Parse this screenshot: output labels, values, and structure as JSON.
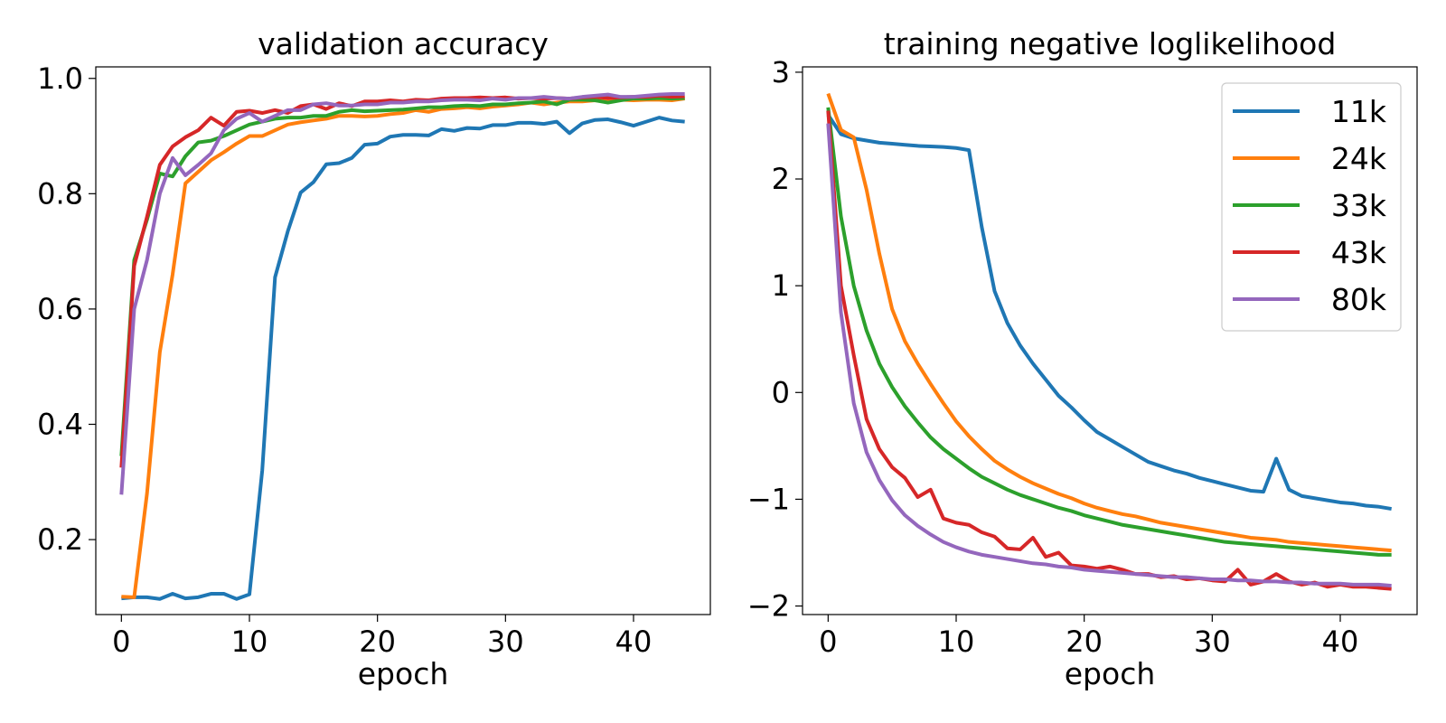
{
  "chart_data": [
    {
      "type": "line",
      "title": "validation accuracy",
      "xlabel": "epoch",
      "ylabel": "",
      "xlim": [
        -2,
        46
      ],
      "ylim": [
        0.07,
        1.02
      ],
      "xticks": [
        0,
        10,
        20,
        30,
        40
      ],
      "xtick_labels": [
        "0",
        "10",
        "20",
        "30",
        "40"
      ],
      "yticks": [
        0.2,
        0.4,
        0.6,
        0.8,
        1.0
      ],
      "ytick_labels": [
        "0.2",
        "0.4",
        "0.6",
        "0.8",
        "1.0"
      ],
      "grid": false,
      "series": [
        {
          "color": "#1f77b4",
          "values": [
            0.098,
            0.1,
            0.1,
            0.097,
            0.106,
            0.098,
            0.1,
            0.106,
            0.106,
            0.097,
            0.105,
            0.32,
            0.655,
            0.735,
            0.802,
            0.82,
            0.851,
            0.853,
            0.862,
            0.885,
            0.887,
            0.899,
            0.902,
            0.902,
            0.901,
            0.912,
            0.909,
            0.914,
            0.913,
            0.919,
            0.919,
            0.923,
            0.923,
            0.921,
            0.925,
            0.905,
            0.922,
            0.928,
            0.929,
            0.924,
            0.918,
            0.925,
            0.932,
            0.927,
            0.925
          ]
        },
        {
          "color": "#ff7f0e",
          "values": [
            0.101,
            0.1,
            0.28,
            0.525,
            0.66,
            0.818,
            0.838,
            0.858,
            0.872,
            0.887,
            0.9,
            0.9,
            0.91,
            0.92,
            0.924,
            0.927,
            0.93,
            0.935,
            0.935,
            0.934,
            0.935,
            0.938,
            0.94,
            0.945,
            0.942,
            0.947,
            0.948,
            0.95,
            0.948,
            0.951,
            0.953,
            0.955,
            0.958,
            0.955,
            0.958,
            0.96,
            0.96,
            0.962,
            0.96,
            0.963,
            0.962,
            0.963,
            0.963,
            0.962,
            0.965
          ]
        },
        {
          "color": "#2ca02c",
          "values": [
            0.345,
            0.685,
            0.755,
            0.835,
            0.83,
            0.865,
            0.889,
            0.892,
            0.9,
            0.91,
            0.92,
            0.925,
            0.93,
            0.932,
            0.932,
            0.935,
            0.935,
            0.942,
            0.945,
            0.943,
            0.944,
            0.945,
            0.946,
            0.948,
            0.95,
            0.95,
            0.952,
            0.953,
            0.952,
            0.955,
            0.955,
            0.957,
            0.958,
            0.96,
            0.955,
            0.963,
            0.963,
            0.962,
            0.958,
            0.962,
            0.965,
            0.965,
            0.966,
            0.965,
            0.966
          ]
        },
        {
          "color": "#d62728",
          "values": [
            0.325,
            0.675,
            0.76,
            0.85,
            0.882,
            0.898,
            0.91,
            0.932,
            0.918,
            0.942,
            0.944,
            0.94,
            0.945,
            0.94,
            0.952,
            0.955,
            0.947,
            0.957,
            0.952,
            0.96,
            0.96,
            0.962,
            0.96,
            0.963,
            0.962,
            0.965,
            0.966,
            0.966,
            0.967,
            0.966,
            0.967,
            0.965,
            0.966,
            0.965,
            0.966,
            0.965,
            0.967,
            0.968,
            0.966,
            0.967,
            0.968,
            0.968,
            0.97,
            0.968,
            0.969
          ]
        },
        {
          "color": "#9467bd",
          "values": [
            0.278,
            0.6,
            0.685,
            0.8,
            0.862,
            0.832,
            0.85,
            0.87,
            0.91,
            0.93,
            0.94,
            0.925,
            0.935,
            0.945,
            0.945,
            0.955,
            0.957,
            0.953,
            0.953,
            0.955,
            0.955,
            0.958,
            0.958,
            0.96,
            0.96,
            0.962,
            0.963,
            0.963,
            0.962,
            0.965,
            0.963,
            0.966,
            0.966,
            0.968,
            0.966,
            0.965,
            0.968,
            0.97,
            0.972,
            0.968,
            0.968,
            0.97,
            0.972,
            0.973,
            0.973
          ]
        }
      ]
    },
    {
      "type": "line",
      "title": "training negative loglikelihood",
      "xlabel": "epoch",
      "ylabel": "",
      "xlim": [
        -2,
        46
      ],
      "ylim": [
        -2.08,
        3.05
      ],
      "xticks": [
        0,
        10,
        20,
        30,
        40
      ],
      "xtick_labels": [
        "0",
        "10",
        "20",
        "30",
        "40"
      ],
      "yticks": [
        -2,
        -1,
        0,
        1,
        2,
        3
      ],
      "ytick_labels": [
        "−2",
        "−1",
        "0",
        "1",
        "2",
        "3"
      ],
      "grid": false,
      "legend": {
        "placement": "upper right",
        "entries": [
          {
            "label": "11k",
            "color": "#1f77b4"
          },
          {
            "label": "24k",
            "color": "#ff7f0e"
          },
          {
            "label": "33k",
            "color": "#2ca02c"
          },
          {
            "label": "43k",
            "color": "#d62728"
          },
          {
            "label": "80k",
            "color": "#9467bd"
          }
        ]
      },
      "series": [
        {
          "name": "11k",
          "color": "#1f77b4",
          "values": [
            2.6,
            2.42,
            2.38,
            2.36,
            2.34,
            2.33,
            2.32,
            2.31,
            2.305,
            2.3,
            2.29,
            2.27,
            1.55,
            0.95,
            0.65,
            0.44,
            0.27,
            0.12,
            -0.03,
            -0.14,
            -0.26,
            -0.37,
            -0.44,
            -0.51,
            -0.58,
            -0.65,
            -0.69,
            -0.73,
            -0.76,
            -0.8,
            -0.83,
            -0.86,
            -0.89,
            -0.92,
            -0.93,
            -0.62,
            -0.91,
            -0.97,
            -0.99,
            -1.01,
            -1.03,
            -1.04,
            -1.06,
            -1.07,
            -1.09
          ]
        },
        {
          "name": "24k",
          "color": "#ff7f0e",
          "values": [
            2.8,
            2.46,
            2.39,
            1.9,
            1.3,
            0.78,
            0.48,
            0.27,
            0.08,
            -0.1,
            -0.27,
            -0.41,
            -0.53,
            -0.64,
            -0.72,
            -0.79,
            -0.85,
            -0.9,
            -0.95,
            -0.99,
            -1.04,
            -1.08,
            -1.11,
            -1.14,
            -1.16,
            -1.19,
            -1.22,
            -1.24,
            -1.26,
            -1.28,
            -1.3,
            -1.32,
            -1.34,
            -1.36,
            -1.37,
            -1.38,
            -1.4,
            -1.41,
            -1.42,
            -1.43,
            -1.44,
            -1.45,
            -1.46,
            -1.47,
            -1.48
          ]
        },
        {
          "name": "33k",
          "color": "#2ca02c",
          "values": [
            2.67,
            1.65,
            1.0,
            0.58,
            0.27,
            0.05,
            -0.13,
            -0.28,
            -0.42,
            -0.53,
            -0.62,
            -0.71,
            -0.79,
            -0.85,
            -0.91,
            -0.96,
            -1.0,
            -1.04,
            -1.08,
            -1.11,
            -1.15,
            -1.18,
            -1.21,
            -1.24,
            -1.26,
            -1.28,
            -1.3,
            -1.32,
            -1.34,
            -1.36,
            -1.38,
            -1.4,
            -1.41,
            -1.42,
            -1.43,
            -1.44,
            -1.45,
            -1.46,
            -1.47,
            -1.48,
            -1.49,
            -1.5,
            -1.51,
            -1.52,
            -1.52
          ]
        },
        {
          "name": "43k",
          "color": "#d62728",
          "values": [
            2.64,
            1.0,
            0.35,
            -0.25,
            -0.53,
            -0.7,
            -0.8,
            -0.98,
            -0.91,
            -1.18,
            -1.22,
            -1.24,
            -1.31,
            -1.35,
            -1.46,
            -1.47,
            -1.36,
            -1.54,
            -1.5,
            -1.62,
            -1.63,
            -1.65,
            -1.63,
            -1.66,
            -1.7,
            -1.7,
            -1.73,
            -1.72,
            -1.75,
            -1.74,
            -1.76,
            -1.77,
            -1.66,
            -1.8,
            -1.77,
            -1.7,
            -1.77,
            -1.8,
            -1.78,
            -1.82,
            -1.8,
            -1.82,
            -1.82,
            -1.83,
            -1.84
          ]
        },
        {
          "name": "80k",
          "color": "#9467bd",
          "values": [
            2.52,
            0.75,
            -0.1,
            -0.56,
            -0.82,
            -1.01,
            -1.15,
            -1.25,
            -1.33,
            -1.4,
            -1.45,
            -1.49,
            -1.52,
            -1.54,
            -1.56,
            -1.58,
            -1.6,
            -1.61,
            -1.63,
            -1.64,
            -1.66,
            -1.67,
            -1.68,
            -1.69,
            -1.7,
            -1.71,
            -1.72,
            -1.73,
            -1.73,
            -1.74,
            -1.75,
            -1.75,
            -1.76,
            -1.76,
            -1.77,
            -1.77,
            -1.78,
            -1.78,
            -1.79,
            -1.79,
            -1.79,
            -1.8,
            -1.8,
            -1.8,
            -1.81
          ]
        }
      ]
    }
  ]
}
